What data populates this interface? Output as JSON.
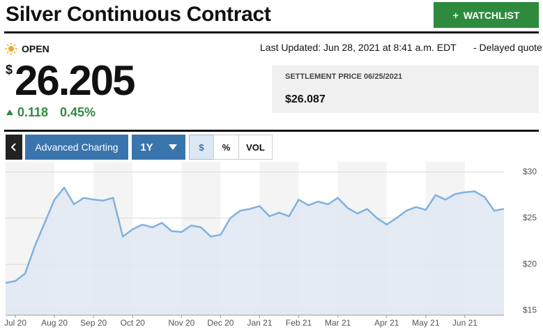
{
  "header": {
    "title": "Silver Continuous Contract",
    "watchlist_button": "WATCHLIST"
  },
  "quote": {
    "status": "OPEN",
    "last_updated": "Last Updated: Jun 28, 2021 at 8:41 a.m. EDT",
    "delay_note": "-  Delayed quote",
    "currency": "$",
    "price": "26.205",
    "change": "0.118",
    "change_percent": "0.45%",
    "settlement_label": "SETTLEMENT PRICE 06/25/2021",
    "settlement_value": "$26.087"
  },
  "toolbar": {
    "advanced_charting": "Advanced Charting",
    "range": "1Y",
    "dollar": "$",
    "percent": "%",
    "volume": "VOL"
  },
  "chart_data": {
    "type": "area",
    "color": "#7fb1df",
    "fill": "#dfe8f2",
    "categories": [
      null,
      "Jul 20",
      null,
      null,
      null,
      "Aug 20",
      null,
      null,
      null,
      "Sep 20",
      null,
      null,
      null,
      "Oct 20",
      null,
      null,
      null,
      null,
      "Nov 20",
      null,
      null,
      null,
      "Dec 20",
      null,
      null,
      null,
      "Jan 21",
      null,
      null,
      null,
      "Feb 21",
      null,
      null,
      null,
      "Mar 21",
      null,
      null,
      null,
      null,
      "Apr 21",
      null,
      null,
      null,
      "May 21",
      null,
      null,
      null,
      "Jun 21",
      null,
      null,
      null,
      null
    ],
    "values": [
      18.0,
      18.2,
      19.0,
      22.0,
      24.5,
      27.0,
      28.3,
      26.5,
      27.2,
      27.0,
      26.9,
      27.2,
      23.0,
      23.8,
      24.3,
      24.0,
      24.5,
      23.6,
      23.5,
      24.2,
      24.0,
      23.0,
      23.2,
      25.0,
      25.8,
      26.0,
      26.3,
      25.2,
      25.6,
      25.2,
      27.0,
      26.4,
      26.8,
      26.5,
      27.2,
      26.1,
      25.5,
      26.0,
      25.0,
      24.3,
      25.0,
      25.8,
      26.2,
      25.9,
      27.5,
      27.0,
      27.6,
      27.8,
      27.9,
      27.3,
      25.8,
      26.0
    ],
    "ylim": [
      14.5,
      31.1
    ],
    "yticks": [
      {
        "value": 15,
        "label": "$15"
      },
      {
        "value": 20,
        "label": "$20"
      },
      {
        "value": 25,
        "label": "$25"
      },
      {
        "value": 30,
        "label": "$30"
      }
    ],
    "grid": true
  }
}
